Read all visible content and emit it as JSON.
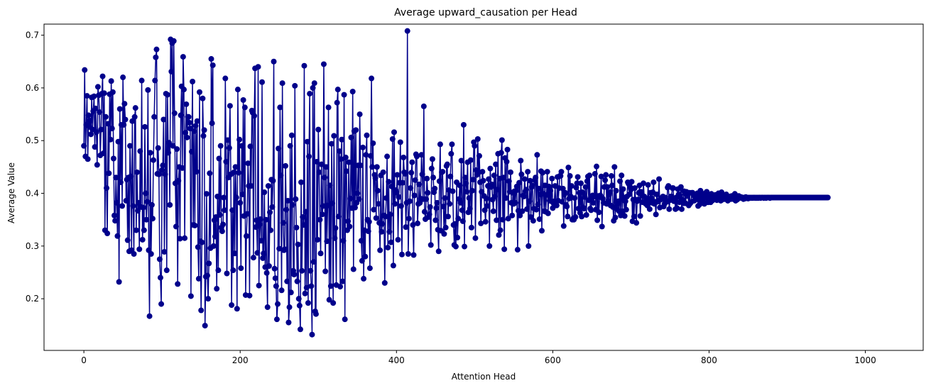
{
  "chart_data": {
    "type": "line",
    "title": "Average upward_causation per Head",
    "xlabel": "Attention Head",
    "ylabel": "Average Value",
    "xlim": [
      -51,
      1074
    ],
    "ylim": [
      0.102,
      0.721
    ],
    "xticks": [
      0,
      200,
      400,
      600,
      800,
      1000
    ],
    "yticks": [
      0.2,
      0.3,
      0.4,
      0.5,
      0.6,
      0.7
    ],
    "xtick_labels": [
      "0",
      "200",
      "400",
      "600",
      "800",
      "1000"
    ],
    "ytick_labels": [
      "0.2",
      "0.3",
      "0.4",
      "0.5",
      "0.6",
      "0.7"
    ],
    "grid": false,
    "legend": "none",
    "color": "#00008b",
    "marker": "circle",
    "series": [
      {
        "x_start": 0,
        "x_step": 1,
        "values": [
          0.49,
          0.634,
          0.47,
          0.53,
          0.585,
          0.465,
          0.548,
          0.526,
          0.538,
          0.512,
          0.582,
          0.521,
          0.556,
          0.584,
          0.488,
          0.561,
          0.516,
          0.454,
          0.602,
          0.586,
          0.554,
          0.472,
          0.521,
          0.589,
          0.622,
          0.476,
          0.59,
          0.33,
          0.545,
          0.41,
          0.324,
          0.532,
          0.438,
          0.588,
          0.502,
          0.613,
          0.523,
          0.592,
          0.466,
          0.358,
          0.348,
          0.43,
          0.382,
          0.319,
          0.498,
          0.232,
          0.56,
          0.421,
          0.53,
          0.376,
          0.62,
          0.53,
          0.57,
          0.54,
          0.386,
          0.426,
          0.311,
          0.43,
          0.29,
          0.49,
          0.432,
          0.292,
          0.537,
          0.376,
          0.285,
          0.545,
          0.562,
          0.33,
          0.44,
          0.367,
          0.382,
          0.294,
          0.48,
          0.374,
          0.614,
          0.312,
          0.373,
          0.33,
          0.526,
          0.4,
          0.35,
          0.384,
          0.596,
          0.292,
          0.167,
          0.477,
          0.285,
          0.378,
          0.352,
          0.463,
          0.545,
          0.614,
          0.658,
          0.673,
          0.437,
          0.486,
          0.436,
          0.275,
          0.24,
          0.19,
          0.444,
          0.453,
          0.54,
          0.289,
          0.436,
          0.589,
          0.254,
          0.587,
          0.477,
          0.496,
          0.378,
          0.692,
          0.631,
          0.685,
          0.49,
          0.689,
          0.552,
          0.419,
          0.337,
          0.484,
          0.228,
          0.424,
          0.45,
          0.314,
          0.548,
          0.603,
          0.448,
          0.659,
          0.597,
          0.315,
          0.515,
          0.569,
          0.506,
          0.545,
          0.545,
          0.534,
          0.523,
          0.205,
          0.479,
          0.612,
          0.34,
          0.518,
          0.339,
          0.528,
          0.441,
          0.537,
          0.298,
          0.238,
          0.592,
          0.309,
          0.178,
          0.307,
          0.58,
          0.509,
          0.52,
          0.149,
          0.242,
          0.399,
          0.244,
          0.2,
          0.267,
          0.438,
          0.296,
          0.655,
          0.533,
          0.643,
          0.3,
          0.349,
          0.318,
          0.355,
          0.219,
          0.394,
          0.254,
          0.466,
          0.359,
          0.49,
          0.335,
          0.328,
          0.341,
          0.392,
          0.368,
          0.618,
          0.46,
          0.248,
          0.501,
          0.43,
          0.486,
          0.566,
          0.436,
          0.188,
          0.368,
          0.254,
          0.44,
          0.286,
          0.45,
          0.392,
          0.181,
          0.597,
          0.439,
          0.502,
          0.382,
          0.258,
          0.49,
          0.398,
          0.577,
          0.357,
          0.563,
          0.207,
          0.319,
          0.361,
          0.457,
          0.414,
          0.206,
          0.489,
          0.414,
          0.557,
          0.553,
          0.278,
          0.547,
          0.637,
          0.336,
          0.349,
          0.287,
          0.64,
          0.225,
          0.341,
          0.351,
          0.31,
          0.611,
          0.277,
          0.286,
          0.402,
          0.26,
          0.35,
          0.249,
          0.184,
          0.414,
          0.262,
          0.364,
          0.33,
          0.426,
          0.374,
          0.424,
          0.65,
          0.257,
          0.239,
          0.224,
          0.161,
          0.19,
          0.485,
          0.295,
          0.563,
          0.434,
          0.216,
          0.609,
          0.344,
          0.292,
          0.294,
          0.452,
          0.369,
          0.233,
          0.386,
          0.155,
          0.184,
          0.49,
          0.212,
          0.51,
          0.378,
          0.253,
          0.246,
          0.604,
          0.389,
          0.335,
          0.233,
          0.303,
          0.2,
          0.187,
          0.142,
          0.421,
          0.253,
          0.355,
          0.34,
          0.642,
          0.21,
          0.365,
          0.221,
          0.498,
          0.192,
          0.47,
          0.589,
          0.253,
          0.224,
          0.132,
          0.6,
          0.27,
          0.609,
          0.176,
          0.171,
          0.46,
          0.312,
          0.521,
          0.44,
          0.35,
          0.286,
          0.455,
          0.36,
          0.376,
          0.645,
          0.43,
          0.252,
          0.45,
          0.309,
          0.377,
          0.563,
          0.198,
          0.415,
          0.224,
          0.494,
          0.381,
          0.192,
          0.509,
          0.315,
          0.334,
          0.226,
          0.572,
          0.597,
          0.356,
          0.48,
          0.223,
          0.465,
          0.502,
          0.233,
          0.31,
          0.587,
          0.161,
          0.468,
          0.442,
          0.33,
          0.347,
          0.459,
          0.337,
          0.39,
          0.506,
          0.372,
          0.593,
          0.256,
          0.518,
          0.373,
          0.52,
          0.382,
          0.4,
          0.453,
          0.389,
          0.55,
          0.453,
          0.31,
          0.272,
          0.487,
          0.238,
          0.33,
          0.28,
          0.473,
          0.51,
          0.35,
          0.328,
          0.346,
          0.258,
          0.471,
          0.618,
          0.45,
          0.495,
          0.369,
          0.435,
          0.429,
          0.353,
          0.45,
          0.405,
          0.38,
          0.344,
          0.292,
          0.434,
          0.327,
          0.342,
          0.44,
          0.358,
          0.23,
          0.356,
          0.391,
          0.47,
          0.297,
          0.422,
          0.327,
          0.36,
          0.307,
          0.413,
          0.503,
          0.263,
          0.516,
          0.38,
          0.406,
          0.401,
          0.435,
          0.312,
          0.393,
          0.42,
          0.497,
          0.376,
          0.284,
          0.42,
          0.468,
          0.44,
          0.437,
          0.336,
          0.382,
          0.708,
          0.285,
          0.352,
          0.385,
          0.41,
          0.439,
          0.459,
          0.34,
          0.283,
          0.396,
          0.425,
          0.474,
          0.47,
          0.343,
          0.38,
          0.417,
          0.382,
          0.39,
          0.473,
          0.436,
          0.389,
          0.565,
          0.365,
          0.351,
          0.389,
          0.428,
          0.401,
          0.355,
          0.36,
          0.374,
          0.302,
          0.447,
          0.465,
          0.43,
          0.402,
          0.409,
          0.349,
          0.372,
          0.382,
          0.331,
          0.29,
          0.423,
          0.493,
          0.329,
          0.44,
          0.441,
          0.375,
          0.323,
          0.391,
          0.335,
          0.452,
          0.455,
          0.356,
          0.406,
          0.38,
          0.432,
          0.475,
          0.493,
          0.404,
          0.34,
          0.302,
          0.342,
          0.299,
          0.421,
          0.316,
          0.352,
          0.389,
          0.415,
          0.382,
          0.462,
          0.368,
          0.347,
          0.53,
          0.299,
          0.43,
          0.419,
          0.403,
          0.459,
          0.364,
          0.391,
          0.371,
          0.463,
          0.335,
          0.405,
          0.426,
          0.497,
          0.49,
          0.315,
          0.444,
          0.435,
          0.503,
          0.439,
          0.471,
          0.421,
          0.343,
          0.403,
          0.441,
          0.424,
          0.395,
          0.368,
          0.346,
          0.39,
          0.376,
          0.414,
          0.427,
          0.3,
          0.447,
          0.412,
          0.417,
          0.388,
          0.366,
          0.434,
          0.394,
          0.455,
          0.349,
          0.407,
          0.475,
          0.321,
          0.428,
          0.33,
          0.477,
          0.501,
          0.35,
          0.43,
          0.294,
          0.467,
          0.391,
          0.46,
          0.483,
          0.352,
          0.423,
          0.403,
          0.44,
          0.382,
          0.358,
          0.401,
          0.38,
          0.404,
          0.382,
          0.405,
          0.413,
          0.293,
          0.367,
          0.42,
          0.358,
          0.462,
          0.436,
          0.366,
          0.396,
          0.394,
          0.427,
          0.404,
          0.407,
          0.37,
          0.441,
          0.3,
          0.385,
          0.424,
          0.355,
          0.412,
          0.415,
          0.348,
          0.371,
          0.425,
          0.43,
          0.369,
          0.473,
          0.379,
          0.409,
          0.351,
          0.398,
          0.442,
          0.329,
          0.439,
          0.399,
          0.366,
          0.415,
          0.365,
          0.397,
          0.441,
          0.362,
          0.413,
          0.386,
          0.405,
          0.385,
          0.428,
          0.372,
          0.381,
          0.385,
          0.414,
          0.379,
          0.377,
          0.431,
          0.386,
          0.41,
          0.433,
          0.433,
          0.441,
          0.384,
          0.409,
          0.338,
          0.398,
          0.401,
          0.378,
          0.375,
          0.356,
          0.449,
          0.39,
          0.433,
          0.394,
          0.414,
          0.35,
          0.352,
          0.35,
          0.391,
          0.355,
          0.411,
          0.419,
          0.431,
          0.371,
          0.401,
          0.363,
          0.419,
          0.356,
          0.402,
          0.373,
          0.371,
          0.393,
          0.412,
          0.359,
          0.423,
          0.432,
          0.387,
          0.434,
          0.371,
          0.368,
          0.392,
          0.396,
          0.382,
          0.394,
          0.437,
          0.369,
          0.451,
          0.349,
          0.395,
          0.364,
          0.393,
          0.396,
          0.432,
          0.337,
          0.39,
          0.382,
          0.412,
          0.425,
          0.435,
          0.38,
          0.412,
          0.386,
          0.397,
          0.402,
          0.377,
          0.433,
          0.415,
          0.374,
          0.348,
          0.45,
          0.354,
          0.405,
          0.37,
          0.38,
          0.385,
          0.366,
          0.423,
          0.358,
          0.434,
          0.366,
          0.408,
          0.392,
          0.357,
          0.385,
          0.369,
          0.394,
          0.421,
          0.418,
          0.398,
          0.412,
          0.407,
          0.422,
          0.347,
          0.388,
          0.356,
          0.41,
          0.388,
          0.344,
          0.385,
          0.388,
          0.401,
          0.415,
          0.357,
          0.403,
          0.396,
          0.383,
          0.419,
          0.394,
          0.384,
          0.38,
          0.39,
          0.377,
          0.416,
          0.384,
          0.37,
          0.401,
          0.391,
          0.382,
          0.402,
          0.421,
          0.38,
          0.384,
          0.36,
          0.398,
          0.384,
          0.386,
          0.427,
          0.373,
          0.388,
          0.391,
          0.39,
          0.394,
          0.375,
          0.38,
          0.392,
          0.386,
          0.384,
          0.411,
          0.414,
          0.37,
          0.387,
          0.394,
          0.394,
          0.41,
          0.41,
          0.385,
          0.39,
          0.37,
          0.392,
          0.372,
          0.408,
          0.398,
          0.383,
          0.395,
          0.412,
          0.37,
          0.388,
          0.381,
          0.404,
          0.4,
          0.381,
          0.403,
          0.395,
          0.4,
          0.377,
          0.401,
          0.381,
          0.383,
          0.401,
          0.401,
          0.396,
          0.386,
          0.387,
          0.398,
          0.391,
          0.4,
          0.376,
          0.394,
          0.379,
          0.405,
          0.394,
          0.389,
          0.385,
          0.399,
          0.38,
          0.396,
          0.392,
          0.403,
          0.383,
          0.383,
          0.394,
          0.393,
          0.383,
          0.399,
          0.386,
          0.394,
          0.388,
          0.391,
          0.397,
          0.393,
          0.387,
          0.395,
          0.4,
          0.388,
          0.394,
          0.386,
          0.402,
          0.388,
          0.391,
          0.396,
          0.389,
          0.39,
          0.398,
          0.39,
          0.386,
          0.394,
          0.392,
          0.394,
          0.389,
          0.395,
          0.392,
          0.389,
          0.391,
          0.399,
          0.386,
          0.393,
          0.388,
          0.39,
          0.395,
          0.391,
          0.392,
          0.393,
          0.391,
          0.392,
          0.389,
          0.392,
          0.39,
          0.393,
          0.391,
          0.392,
          0.39,
          0.392,
          0.391,
          0.392,
          0.391,
          0.392,
          0.391,
          0.392,
          0.392,
          0.391,
          0.392,
          0.391,
          0.392,
          0.391,
          0.392,
          0.392,
          0.391,
          0.392,
          0.392,
          0.392,
          0.391,
          0.392,
          0.392,
          0.391,
          0.392,
          0.392,
          0.392,
          0.392,
          0.391,
          0.392,
          0.392,
          0.392,
          0.392,
          0.392,
          0.392,
          0.392,
          0.392,
          0.392,
          0.392,
          0.392,
          0.392,
          0.392,
          0.392,
          0.392,
          0.392,
          0.392,
          0.392,
          0.392,
          0.392,
          0.392,
          0.392,
          0.392,
          0.392,
          0.392,
          0.392,
          0.392,
          0.392,
          0.392,
          0.392,
          0.392,
          0.392,
          0.392,
          0.392,
          0.392,
          0.392,
          0.392,
          0.392,
          0.392,
          0.392,
          0.392,
          0.392,
          0.392,
          0.392,
          0.392,
          0.392,
          0.392,
          0.392,
          0.392,
          0.392,
          0.392,
          0.392,
          0.392,
          0.392,
          0.392,
          0.392,
          0.392,
          0.392,
          0.392,
          0.392,
          0.392,
          0.392,
          0.392,
          0.392,
          0.392,
          0.392,
          0.392,
          0.392,
          0.392,
          0.392,
          0.392,
          0.392,
          0.392,
          0.392
        ]
      }
    ]
  }
}
